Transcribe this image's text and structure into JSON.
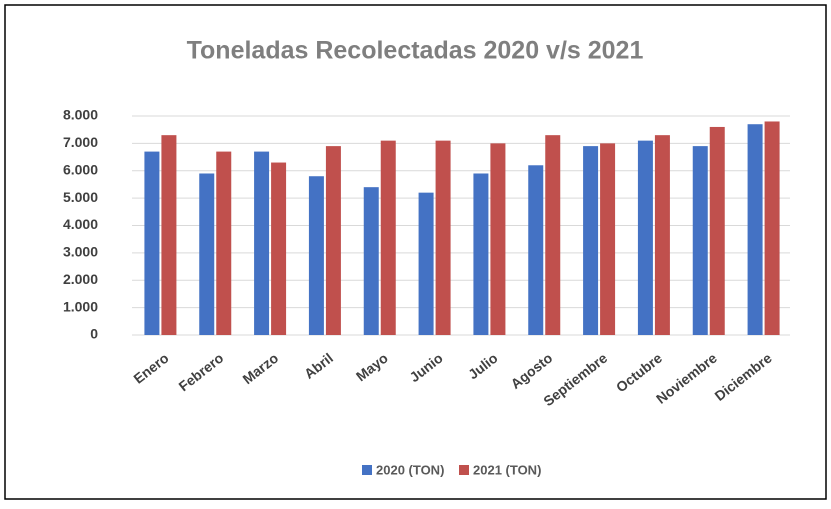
{
  "chart_data": {
    "type": "bar",
    "title": "Toneladas Recolectadas 2020 v/s 2021",
    "categories": [
      "Enero",
      "Febrero",
      "Marzo",
      "Abril",
      "Mayo",
      "Junio",
      "Julio",
      "Agosto",
      "Septiembre",
      "Octubre",
      "Noviembre",
      "Diciembre"
    ],
    "series": [
      {
        "name": "2020 (TON)",
        "color": "#4472c4",
        "values": [
          6700,
          5900,
          6700,
          5800,
          5400,
          5200,
          5900,
          6200,
          6900,
          7100,
          6900,
          7700
        ]
      },
      {
        "name": "2021 (TON)",
        "color": "#c0504d",
        "values": [
          7300,
          6700,
          6300,
          6900,
          7100,
          7100,
          7000,
          7300,
          7000,
          7300,
          7600,
          7800
        ]
      }
    ],
    "ylim": [
      0,
      8000
    ],
    "yticks": [
      0,
      {
        "value": 1000,
        "label": "1.000"
      },
      {
        "value": 2000,
        "label": "2.000"
      },
      {
        "value": 3000,
        "label": "3.000"
      },
      {
        "value": 4000,
        "label": "4.000"
      },
      {
        "value": 5000,
        "label": "5.000"
      },
      {
        "value": 6000,
        "label": "6.000"
      },
      {
        "value": 7000,
        "label": "7.000"
      },
      {
        "value": 8000,
        "label": "8.000"
      }
    ],
    "grid": true,
    "legend": "bottom"
  }
}
